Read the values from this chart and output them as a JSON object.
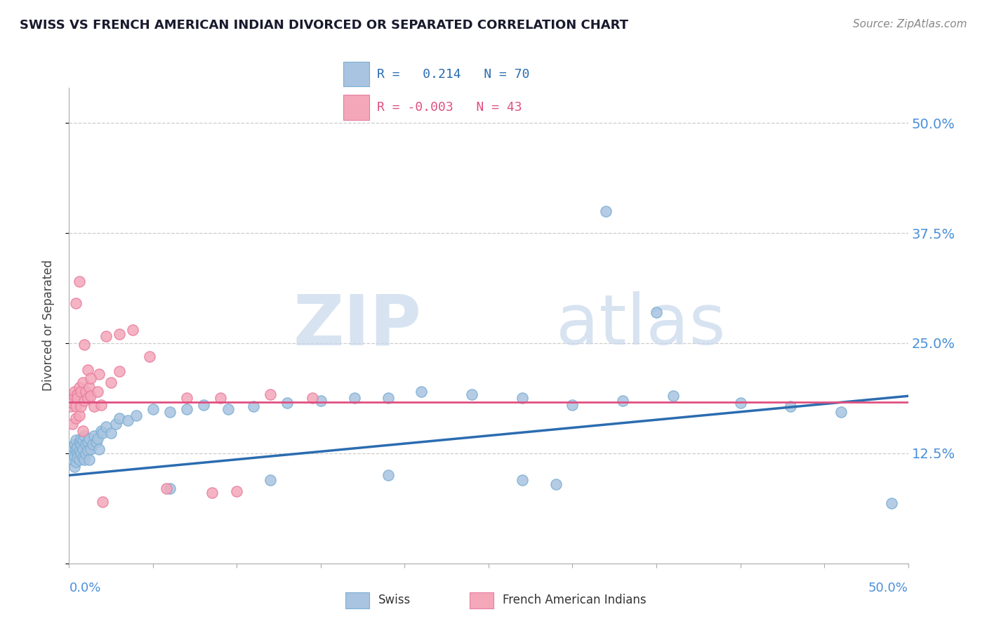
{
  "title": "SWISS VS FRENCH AMERICAN INDIAN DIVORCED OR SEPARATED CORRELATION CHART",
  "source": "Source: ZipAtlas.com",
  "ylabel": "Divorced or Separated",
  "yticks": [
    0.0,
    0.125,
    0.25,
    0.375,
    0.5
  ],
  "ytick_labels": [
    "",
    "12.5%",
    "25.0%",
    "37.5%",
    "50.0%"
  ],
  "xlim": [
    0.0,
    0.5
  ],
  "ylim": [
    0.0,
    0.54
  ],
  "watermark_zip": "ZIP",
  "watermark_atlas": "atlas",
  "swiss_color": "#a8c4e0",
  "swiss_edge": "#7bafd4",
  "french_color": "#f4a7b9",
  "french_edge": "#e87da0",
  "swiss_line_color": "#2b6cb0",
  "french_line_color": "#e05080",
  "swiss_scatter_x": [
    0.001,
    0.002,
    0.002,
    0.003,
    0.003,
    0.003,
    0.004,
    0.004,
    0.004,
    0.005,
    0.005,
    0.005,
    0.006,
    0.006,
    0.006,
    0.007,
    0.007,
    0.007,
    0.008,
    0.008,
    0.008,
    0.009,
    0.009,
    0.01,
    0.01,
    0.011,
    0.011,
    0.012,
    0.012,
    0.013,
    0.014,
    0.015,
    0.016,
    0.017,
    0.018,
    0.019,
    0.02,
    0.022,
    0.025,
    0.028,
    0.03,
    0.035,
    0.04,
    0.05,
    0.06,
    0.07,
    0.08,
    0.095,
    0.11,
    0.13,
    0.15,
    0.17,
    0.19,
    0.21,
    0.24,
    0.27,
    0.3,
    0.33,
    0.36,
    0.4,
    0.43,
    0.46,
    0.49,
    0.32,
    0.35,
    0.27,
    0.29,
    0.19,
    0.12,
    0.06
  ],
  "swiss_scatter_y": [
    0.128,
    0.132,
    0.118,
    0.135,
    0.122,
    0.11,
    0.13,
    0.14,
    0.115,
    0.125,
    0.132,
    0.12,
    0.138,
    0.128,
    0.118,
    0.135,
    0.125,
    0.142,
    0.13,
    0.14,
    0.12,
    0.145,
    0.118,
    0.135,
    0.125,
    0.138,
    0.128,
    0.142,
    0.118,
    0.13,
    0.135,
    0.145,
    0.138,
    0.142,
    0.13,
    0.15,
    0.148,
    0.155,
    0.148,
    0.158,
    0.165,
    0.162,
    0.168,
    0.175,
    0.172,
    0.175,
    0.18,
    0.175,
    0.178,
    0.182,
    0.185,
    0.188,
    0.188,
    0.195,
    0.192,
    0.188,
    0.18,
    0.185,
    0.19,
    0.182,
    0.178,
    0.172,
    0.068,
    0.4,
    0.285,
    0.095,
    0.09,
    0.1,
    0.095,
    0.085
  ],
  "french_scatter_x": [
    0.001,
    0.002,
    0.002,
    0.003,
    0.003,
    0.004,
    0.004,
    0.005,
    0.005,
    0.006,
    0.006,
    0.007,
    0.007,
    0.008,
    0.008,
    0.009,
    0.01,
    0.011,
    0.012,
    0.013,
    0.015,
    0.017,
    0.019,
    0.022,
    0.025,
    0.03,
    0.038,
    0.048,
    0.058,
    0.07,
    0.085,
    0.1,
    0.12,
    0.145,
    0.03,
    0.018,
    0.009,
    0.006,
    0.004,
    0.011,
    0.013,
    0.02,
    0.09
  ],
  "french_scatter_y": [
    0.178,
    0.182,
    0.158,
    0.19,
    0.195,
    0.178,
    0.165,
    0.192,
    0.188,
    0.2,
    0.168,
    0.178,
    0.195,
    0.205,
    0.15,
    0.185,
    0.195,
    0.188,
    0.2,
    0.19,
    0.178,
    0.195,
    0.18,
    0.258,
    0.205,
    0.218,
    0.265,
    0.235,
    0.085,
    0.188,
    0.08,
    0.082,
    0.192,
    0.188,
    0.26,
    0.215,
    0.248,
    0.32,
    0.295,
    0.22,
    0.21,
    0.07,
    0.188
  ],
  "swiss_trend_x": [
    0.0,
    0.5
  ],
  "swiss_trend_y": [
    0.1,
    0.19
  ],
  "french_trend_x": [
    0.0,
    0.5
  ],
  "french_trend_y": [
    0.183,
    0.183
  ]
}
